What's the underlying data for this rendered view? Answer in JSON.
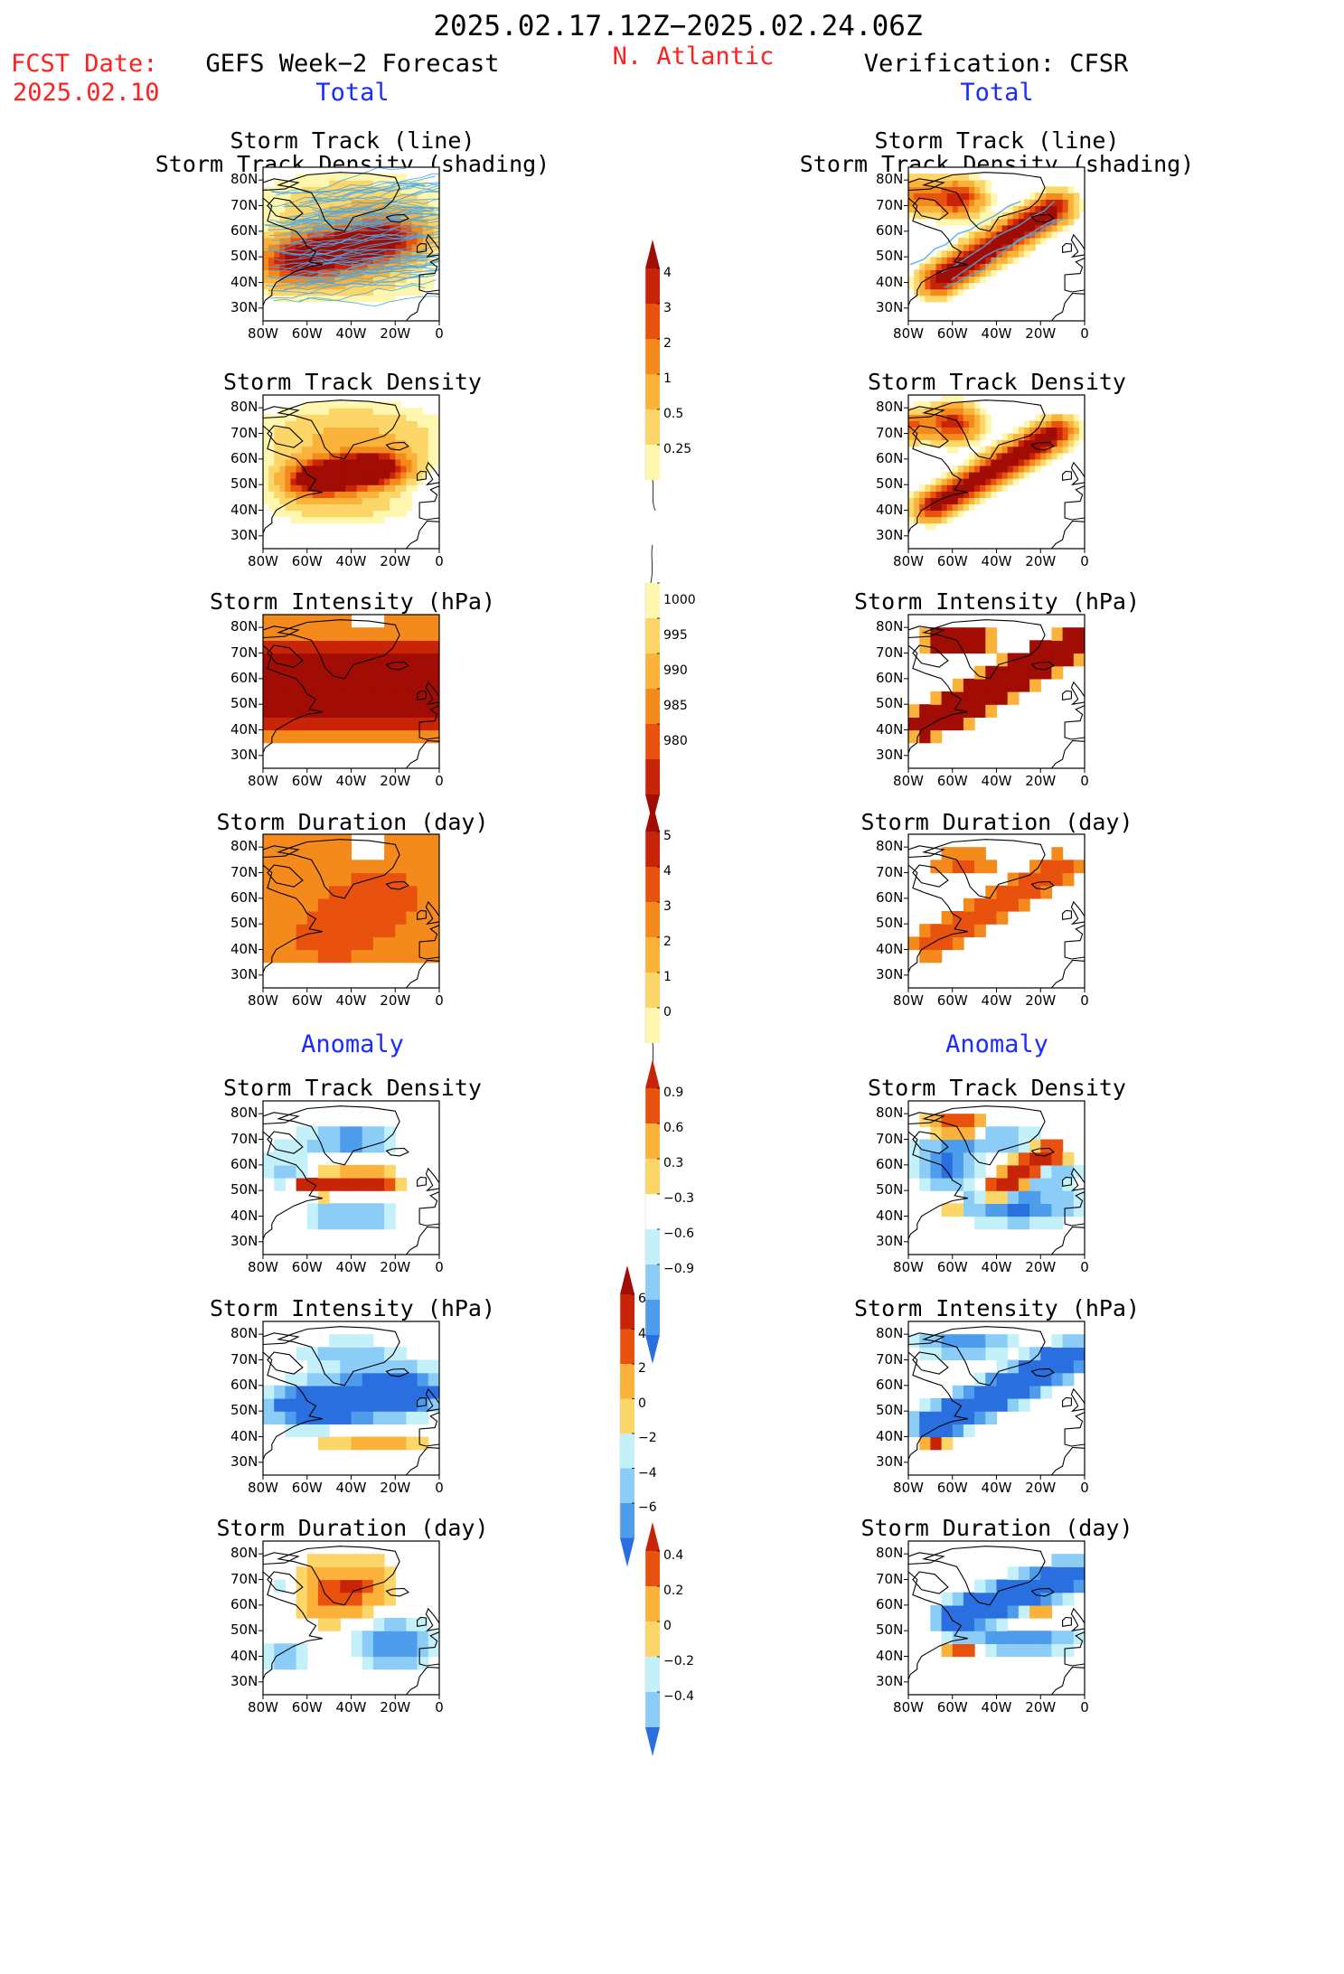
{
  "header": {
    "period": "2025.02.17.12Z−2025.02.24.06Z",
    "fcst_label": "FCST Date:",
    "fcst_date": "2025.02.10",
    "forecast_title": "GEFS Week−2 Forecast",
    "region": "N. Atlantic",
    "verification_title": "Verification: CFSR",
    "total_label_left": "Total",
    "total_label_right": "Total",
    "anomaly_label_left": "Anomaly",
    "anomaly_label_right": "Anomaly"
  },
  "panels": {
    "track_title_1": "Storm Track (line)",
    "track_title_2": "Storm Track Density (shading)",
    "density_title": "Storm Track Density",
    "intensity_title": "Storm Intensity (hPa)",
    "duration_title": "Storm Duration (day)"
  },
  "axes": {
    "x_ticks": [
      "80W",
      "60W",
      "40W",
      "20W",
      "0"
    ],
    "y_ticks": [
      "80N",
      "70N",
      "60N",
      "50N",
      "40N",
      "30N"
    ]
  },
  "colorbars": {
    "density_total": [
      "4",
      "3",
      "2",
      "1",
      "0.5",
      "0.25"
    ],
    "intensity_total": [
      "1000",
      "995",
      "990",
      "985",
      "980"
    ],
    "duration_total": [
      "5",
      "4",
      "3",
      "2",
      "1",
      "0"
    ],
    "density_anom": [
      "0.9",
      "0.6",
      "0.3",
      "−0.3",
      "−0.6",
      "−0.9"
    ],
    "intensity_anom": [
      "6",
      "4",
      "2",
      "0",
      "−2",
      "−4",
      "−6"
    ],
    "duration_anom": [
      "0.4",
      "0.2",
      "0",
      "−0.2",
      "−0.4"
    ]
  },
  "colors": {
    "title_red": "#ff2020",
    "label_blue": "#1a2cff",
    "track_line": "#4aa8e8",
    "c_025": "#fff7b0",
    "c_05": "#fdd66a",
    "c_1": "#fbb23a",
    "c_2": "#f58a1c",
    "c_3": "#e8520e",
    "c_4": "#c82408",
    "c_5": "#a10c04",
    "neg_1": "#c4f0fa",
    "neg_2": "#8ccdf7",
    "neg_3": "#4e9cec",
    "neg_4": "#2a6fe0"
  }
}
